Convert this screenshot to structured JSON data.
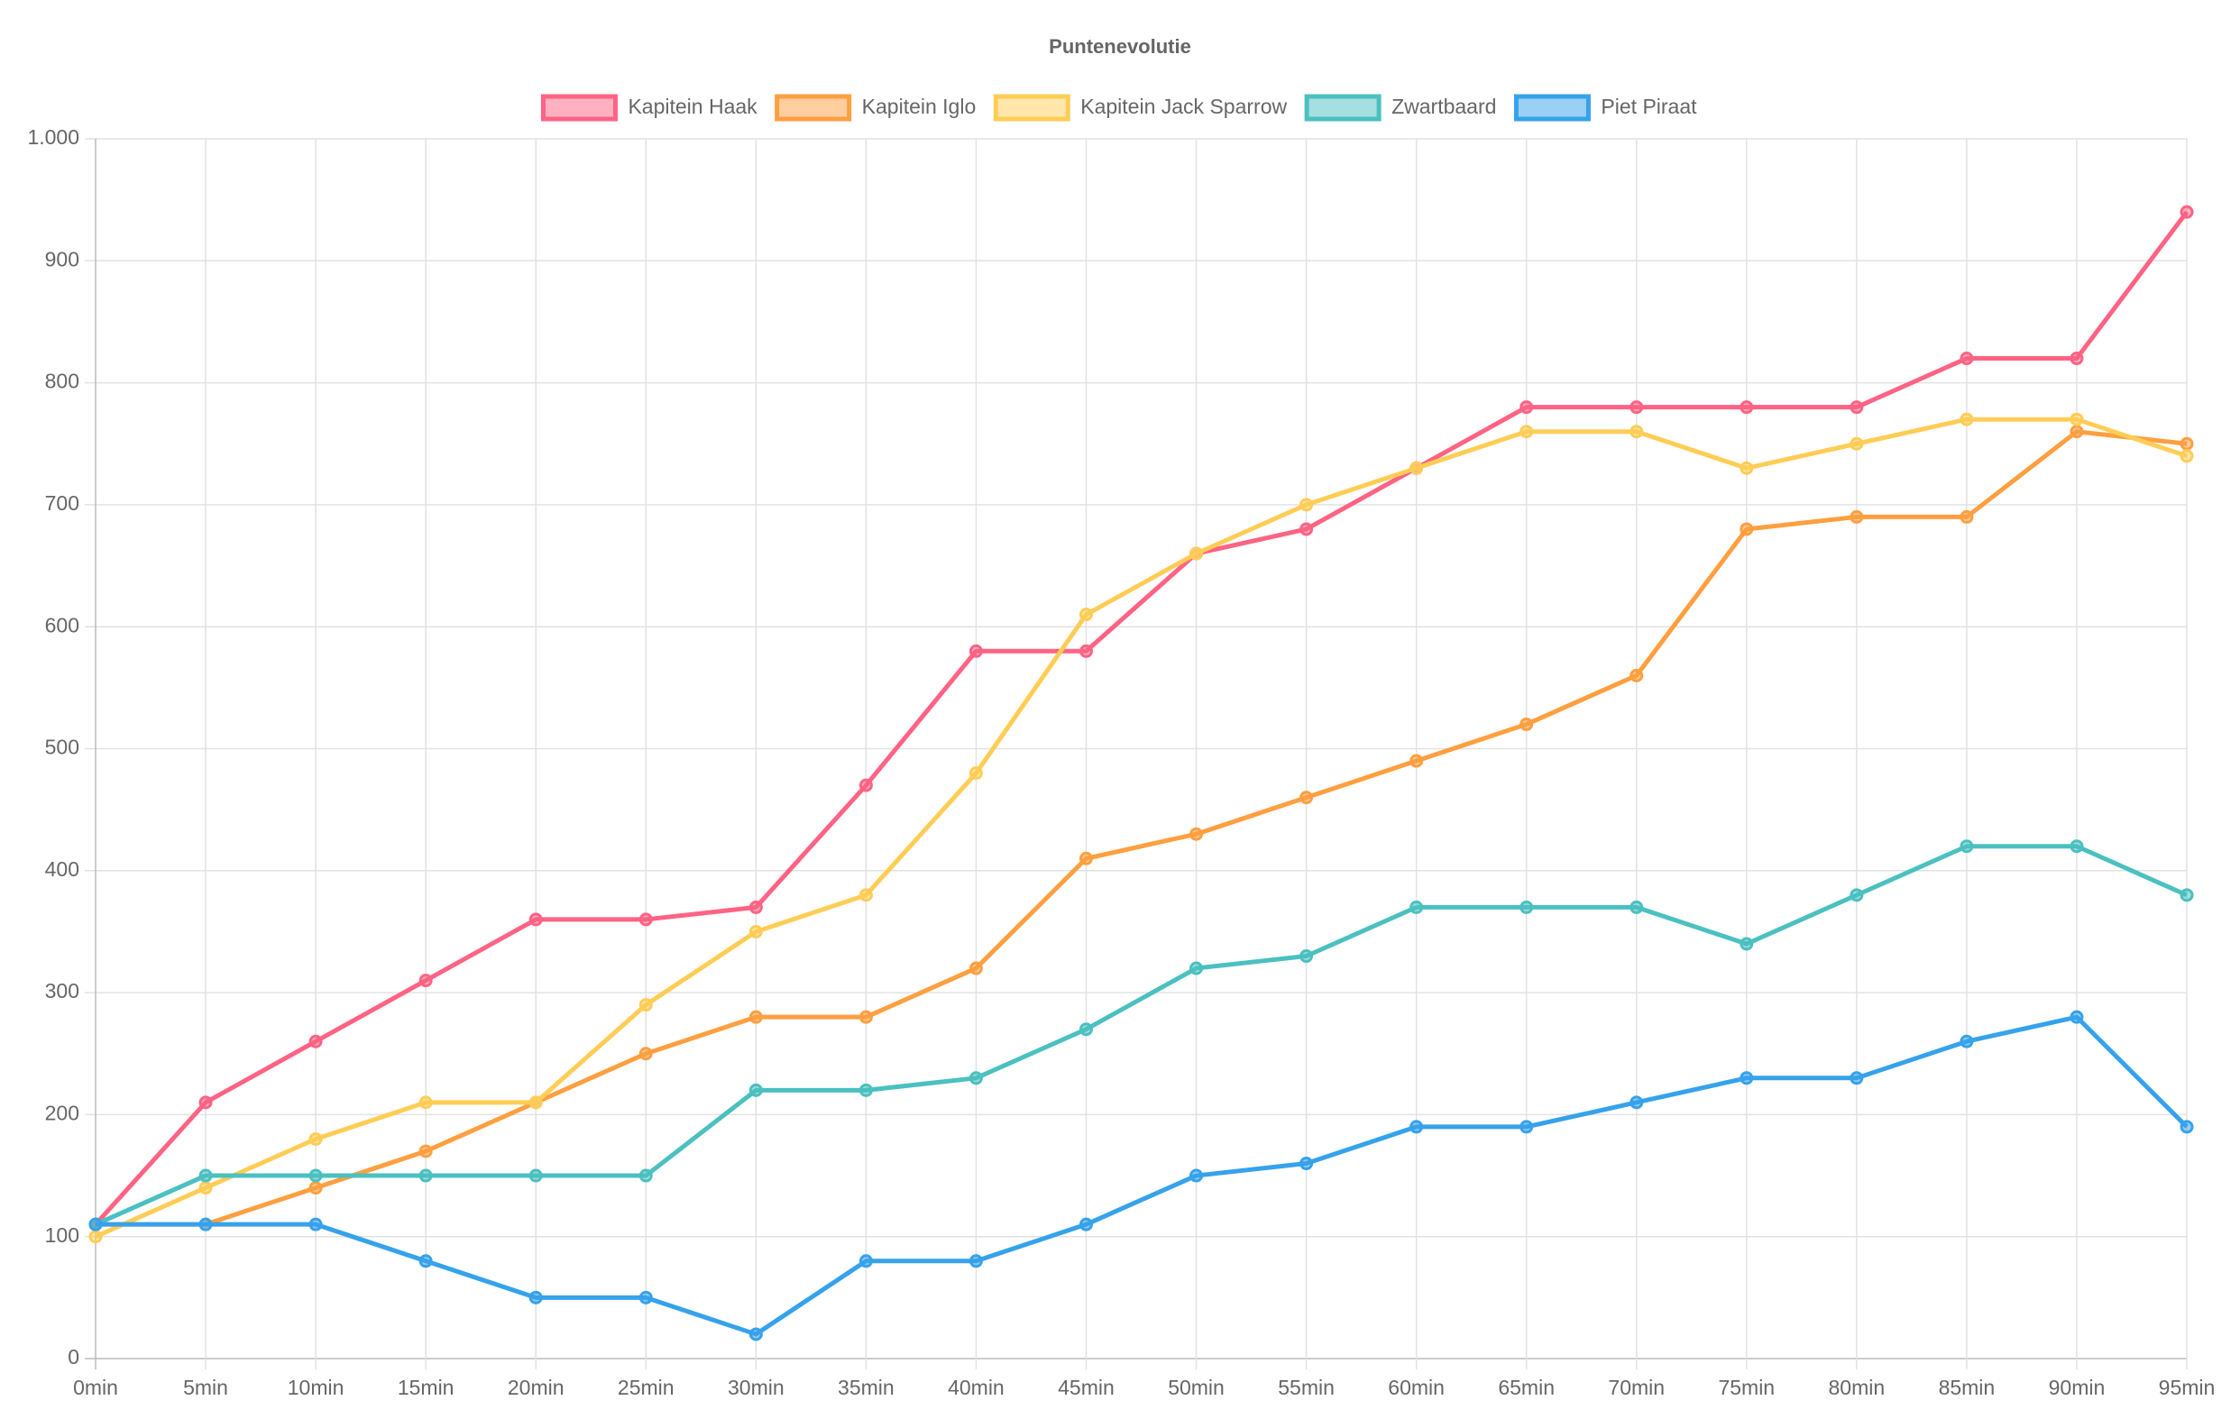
{
  "chart_data": {
    "type": "line",
    "title": "Puntenevolutie",
    "categories": [
      "0min",
      "5min",
      "10min",
      "15min",
      "20min",
      "25min",
      "30min",
      "35min",
      "40min",
      "45min",
      "50min",
      "55min",
      "60min",
      "65min",
      "70min",
      "75min",
      "80min",
      "85min",
      "90min",
      "95min"
    ],
    "series": [
      {
        "name": "Kapitein Haak",
        "color": "#ff6384",
        "values": [
          110,
          210,
          260,
          310,
          360,
          360,
          370,
          470,
          580,
          580,
          660,
          680,
          730,
          780,
          780,
          780,
          780,
          820,
          820,
          940
        ]
      },
      {
        "name": "Kapitein Iglo",
        "color": "#ff9f40",
        "values": [
          110,
          110,
          140,
          170,
          210,
          250,
          280,
          280,
          320,
          410,
          430,
          460,
          490,
          520,
          560,
          680,
          690,
          690,
          760,
          750
        ]
      },
      {
        "name": "Kapitein Jack Sparrow",
        "color": "#ffcd56",
        "values": [
          100,
          140,
          180,
          210,
          210,
          290,
          350,
          380,
          480,
          610,
          660,
          700,
          730,
          760,
          760,
          730,
          750,
          770,
          770,
          740
        ]
      },
      {
        "name": "Zwartbaard",
        "color": "#4bc0c0",
        "values": [
          110,
          150,
          150,
          150,
          150,
          150,
          220,
          220,
          230,
          270,
          320,
          330,
          370,
          370,
          370,
          340,
          380,
          420,
          420,
          380
        ]
      },
      {
        "name": "Piet Piraat",
        "color": "#36a2eb",
        "values": [
          110,
          110,
          110,
          80,
          50,
          50,
          20,
          80,
          80,
          110,
          150,
          160,
          190,
          190,
          210,
          230,
          230,
          260,
          280,
          190
        ]
      }
    ],
    "ylim": [
      0,
      1000
    ],
    "yticks": [
      0,
      100,
      200,
      300,
      400,
      500,
      600,
      700,
      800,
      900,
      {
        "value": 1000,
        "label": "1.000"
      }
    ],
    "grid": true,
    "legend": "top"
  }
}
